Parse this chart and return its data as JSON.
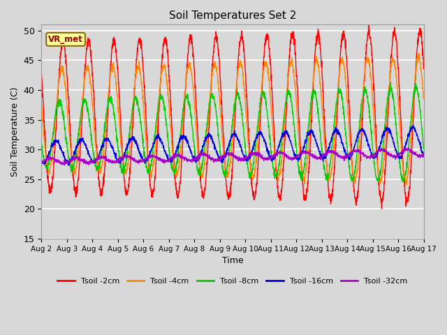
{
  "title": "Soil Temperatures Set 2",
  "xlabel": "Time",
  "ylabel": "Soil Temperature (C)",
  "ylim": [
    15,
    51
  ],
  "yticks": [
    15,
    20,
    25,
    30,
    35,
    40,
    45,
    50
  ],
  "bg_color": "#d8d8d8",
  "plot_bg_color": "#d8d8d8",
  "annotation_text": "VR_met",
  "series": [
    {
      "label": "Tsoil -2cm",
      "color": "#ff0000",
      "lw": 1.0
    },
    {
      "label": "Tsoil -4cm",
      "color": "#ff8800",
      "lw": 1.0
    },
    {
      "label": "Tsoil -8cm",
      "color": "#00cc00",
      "lw": 1.0
    },
    {
      "label": "Tsoil -16cm",
      "color": "#0000dd",
      "lw": 1.0
    },
    {
      "label": "Tsoil -32cm",
      "color": "#aa00cc",
      "lw": 1.0
    }
  ],
  "xtick_labels": [
    "Aug 2",
    "Aug 3",
    "Aug 4",
    "Aug 5",
    "Aug 6",
    "Aug 7",
    "Aug 8",
    "Aug 9",
    "Aug 10",
    "Aug 11",
    "Aug 12",
    "Aug 13",
    "Aug 14",
    "Aug 15",
    "Aug 16",
    "Aug 17"
  ],
  "n_days": 15,
  "samples_per_day": 144
}
